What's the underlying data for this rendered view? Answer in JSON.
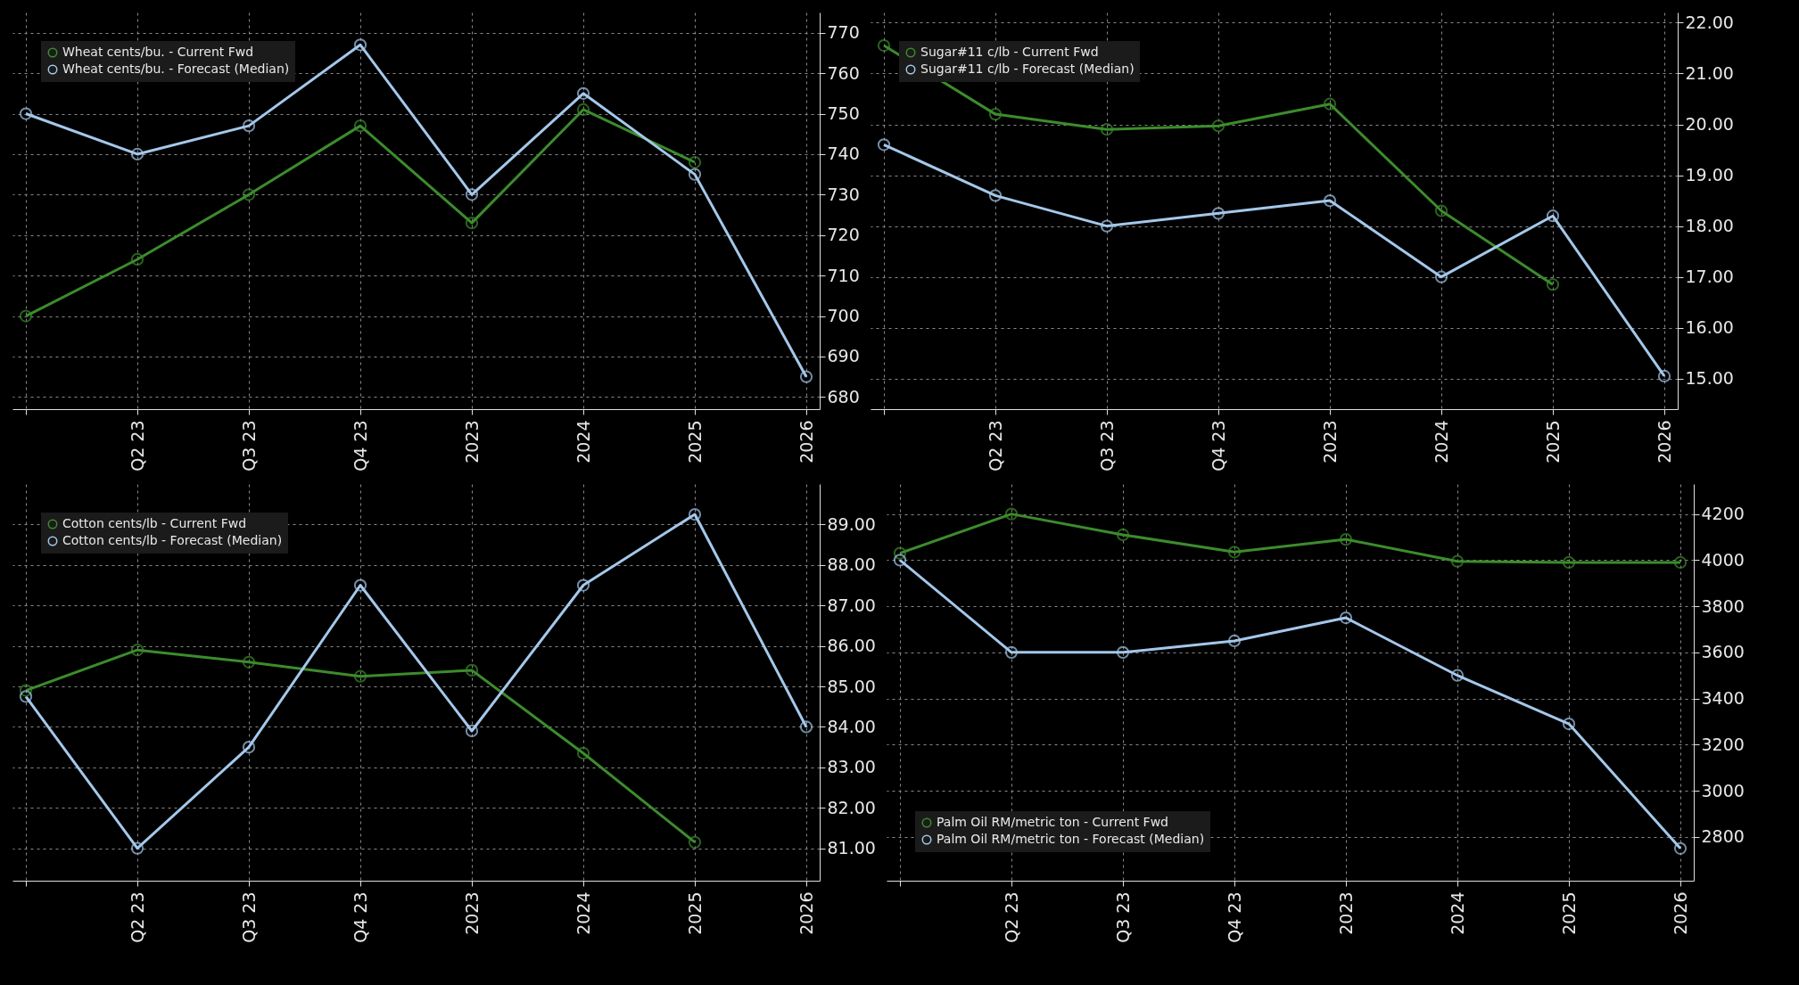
{
  "chart_data": [
    {
      "type": "line",
      "categories": [
        null,
        "Q2 23",
        "Q3 23",
        "Q4 23",
        "2023",
        "2024",
        "2025",
        "2026"
      ],
      "ylim": [
        677,
        775
      ],
      "yticks": [
        680,
        690,
        700,
        710,
        720,
        730,
        740,
        750,
        760,
        770
      ],
      "grid": true,
      "legend": "top left",
      "marker": "circle",
      "line_style": "solid",
      "series": [
        {
          "name": "Wheat cents/bu. - Current Fwd",
          "color": "#3c8c2c",
          "values": [
            700,
            714,
            730,
            747,
            723,
            751,
            738,
            null
          ]
        },
        {
          "name": "Wheat cents/bu. - Forecast (Median)",
          "color": "#a4c8ea",
          "values": [
            750,
            740,
            747,
            767,
            730,
            755,
            735,
            685
          ]
        }
      ]
    },
    {
      "type": "line",
      "categories": [
        null,
        "Q2 23",
        "Q3 23",
        "Q4 23",
        "2023",
        "2024",
        "2025",
        "2026"
      ],
      "ylim": [
        14.4,
        22.2
      ],
      "yticks": [
        {
          "value": 15,
          "label": "15.00"
        },
        {
          "value": 16,
          "label": "16.00"
        },
        {
          "value": 17,
          "label": "17.00"
        },
        {
          "value": 18,
          "label": "18.00"
        },
        {
          "value": 19,
          "label": "19.00"
        },
        {
          "value": 20,
          "label": "20.00"
        },
        {
          "value": 21,
          "label": "21.00"
        },
        {
          "value": 22,
          "label": "22.00"
        }
      ],
      "grid": true,
      "legend": "top left",
      "marker": "circle",
      "line_style": "solid",
      "series": [
        {
          "name": "Sugar#11 c/lb - Current Fwd",
          "color": "#3c8c2c",
          "values": [
            21.55,
            20.2,
            19.9,
            19.97,
            20.4,
            18.3,
            16.85,
            null
          ]
        },
        {
          "name": "Sugar#11 c/lb - Forecast (Median)",
          "color": "#a4c8ea",
          "values": [
            19.6,
            18.6,
            18.0,
            18.25,
            18.5,
            17.0,
            18.2,
            15.05
          ]
        }
      ]
    },
    {
      "type": "line",
      "categories": [
        null,
        "Q2 23",
        "Q3 23",
        "Q4 23",
        "2023",
        "2024",
        "2025",
        "2026"
      ],
      "ylim": [
        80.2,
        90
      ],
      "yticks": [
        {
          "value": 81,
          "label": "81.00"
        },
        {
          "value": 82,
          "label": "82.00"
        },
        {
          "value": 83,
          "label": "83.00"
        },
        {
          "value": 84,
          "label": "84.00"
        },
        {
          "value": 85,
          "label": "85.00"
        },
        {
          "value": 86,
          "label": "86.00"
        },
        {
          "value": 87,
          "label": "87.00"
        },
        {
          "value": 88,
          "label": "88.00"
        },
        {
          "value": 89,
          "label": "89.00"
        }
      ],
      "grid": true,
      "legend": "top left",
      "marker": "circle",
      "line_style": "solid",
      "series": [
        {
          "name": "Cotton cents/lb - Current Fwd",
          "color": "#3c8c2c",
          "values": [
            84.9,
            85.9,
            85.6,
            85.25,
            85.4,
            83.35,
            81.15,
            null
          ]
        },
        {
          "name": "Cotton cents/lb - Forecast (Median)",
          "color": "#a4c8ea",
          "values": [
            84.75,
            81.0,
            83.5,
            87.5,
            83.9,
            87.5,
            89.25,
            84.0
          ]
        }
      ]
    },
    {
      "type": "line",
      "categories": [
        null,
        "Q2 23",
        "Q3 23",
        "Q4 23",
        "2023",
        "2024",
        "2025",
        "2026"
      ],
      "ylim": [
        2610,
        4330
      ],
      "yticks": [
        2800,
        3000,
        3200,
        3400,
        3600,
        3800,
        4000,
        4200
      ],
      "grid": true,
      "legend": "bottom left",
      "marker": "circle",
      "line_style": "solid",
      "series": [
        {
          "name": "Palm Oil RM/metric ton - Current Fwd",
          "color": "#3c8c2c",
          "values": [
            4030,
            4200,
            4110,
            4035,
            4090,
            3995,
            3990,
            3990
          ]
        },
        {
          "name": "Palm Oil RM/metric ton - Forecast (Median)",
          "color": "#a4c8ea",
          "values": [
            4000,
            3600,
            3600,
            3650,
            3750,
            3500,
            3290,
            2750
          ]
        }
      ]
    }
  ]
}
